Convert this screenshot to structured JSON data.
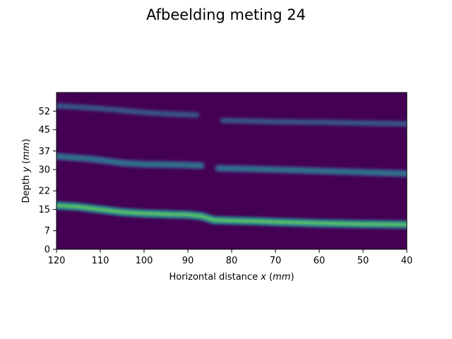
{
  "chart_data": {
    "type": "heatmap",
    "title": "Afbeelding meting 24",
    "xlabel": "Horizontal distance x (mm)",
    "ylabel": "Depth y (mm)",
    "xlim": [
      120,
      40
    ],
    "ylim": [
      0,
      59
    ],
    "x_ticks": [
      120,
      110,
      100,
      90,
      80,
      70,
      60,
      50,
      40
    ],
    "y_ticks": [
      0,
      7,
      15,
      22,
      30,
      37,
      45,
      52
    ],
    "colormap": "viridis",
    "background_color": "#440154",
    "layers": [
      {
        "name": "layer-top",
        "intensity": 0.3,
        "thickness": 1.6,
        "segments": [
          [
            [
              120,
              54.0
            ],
            [
              110,
              53.0
            ],
            [
              100,
              51.5
            ],
            [
              95,
              51.0
            ],
            [
              88,
              50.5
            ]
          ],
          [
            [
              82,
              48.5
            ],
            [
              75,
              48.2
            ],
            [
              70,
              48.0
            ],
            [
              60,
              47.8
            ],
            [
              50,
              47.5
            ],
            [
              40,
              47.2
            ]
          ]
        ]
      },
      {
        "name": "layer-middle",
        "intensity": 0.42,
        "thickness": 1.8,
        "segments": [
          [
            [
              120,
              35.0
            ],
            [
              112,
              34.0
            ],
            [
              105,
              32.5
            ],
            [
              100,
              32.0
            ],
            [
              92,
              31.8
            ],
            [
              87,
              31.5
            ]
          ],
          [
            [
              83,
              30.5
            ],
            [
              75,
              30.2
            ],
            [
              70,
              30.0
            ],
            [
              60,
              29.5
            ],
            [
              50,
              29.0
            ],
            [
              40,
              28.5
            ]
          ]
        ]
      },
      {
        "name": "layer-bottom",
        "intensity": 0.75,
        "thickness": 2.0,
        "segments": [
          [
            [
              120,
              16.5
            ],
            [
              115,
              16.0
            ],
            [
              110,
              15.0
            ],
            [
              105,
              14.0
            ],
            [
              100,
              13.5
            ],
            [
              95,
              13.2
            ],
            [
              90,
              13.0
            ],
            [
              87,
              12.5
            ],
            [
              84,
              11.0
            ],
            [
              80,
              10.8
            ],
            [
              75,
              10.6
            ],
            [
              70,
              10.3
            ],
            [
              60,
              9.8
            ],
            [
              50,
              9.5
            ],
            [
              40,
              9.3
            ]
          ]
        ]
      }
    ]
  }
}
